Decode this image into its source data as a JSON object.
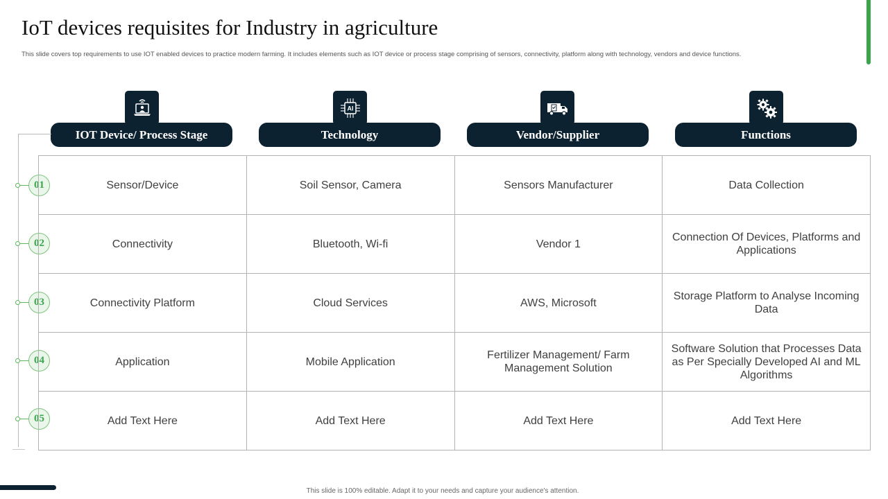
{
  "slide": {
    "title": "IoT devices requisites for Industry in agriculture",
    "subtitle": "This slide covers top requirements to use IOT  enabled  devices to practice modern  farming. It includes elements  such as IOT  device or process stage comprising of sensors, connectivity, platform along with technology, vendors and device functions.",
    "footer": "This slide is 100% editable.  Adapt it to your needs and capture your audience's attention."
  },
  "colors": {
    "navy": "#0d2231",
    "green": "#3aa64b",
    "grid": "#b3b3b3"
  },
  "columns": [
    {
      "label": "IOT Device/ Process Stage",
      "icon": "laptop-signal-icon"
    },
    {
      "label": "Technology",
      "icon": "ai-chip-icon"
    },
    {
      "label": "Vendor/Supplier",
      "icon": "delivery-truck-icon"
    },
    {
      "label": "Functions",
      "icon": "gears-icon"
    }
  ],
  "rows": [
    {
      "number": "01",
      "cells": [
        "Sensor/Device",
        "Soil Sensor,  Camera",
        "Sensors Manufacturer",
        "Data Collection"
      ]
    },
    {
      "number": "02",
      "cells": [
        "Connectivity",
        "Bluetooth,  Wi-fi",
        "Vendor 1",
        "Connection Of Devices, Platforms and Applications"
      ]
    },
    {
      "number": "03",
      "cells": [
        "Connectivity  Platform",
        "Cloud Services",
        "AWS, Microsoft",
        "Storage Platform to Analyse Incoming Data"
      ]
    },
    {
      "number": "04",
      "cells": [
        "Application",
        "Mobile Application",
        "Fertilizer Management/  Farm Management Solution",
        "Software Solution that  Processes Data as Per Specially Developed AI and ML Algorithms"
      ]
    },
    {
      "number": "05",
      "cells": [
        "Add Text Here",
        "Add Text Here",
        "Add Text Here",
        "Add Text Here"
      ]
    }
  ],
  "chip_text": "AI"
}
